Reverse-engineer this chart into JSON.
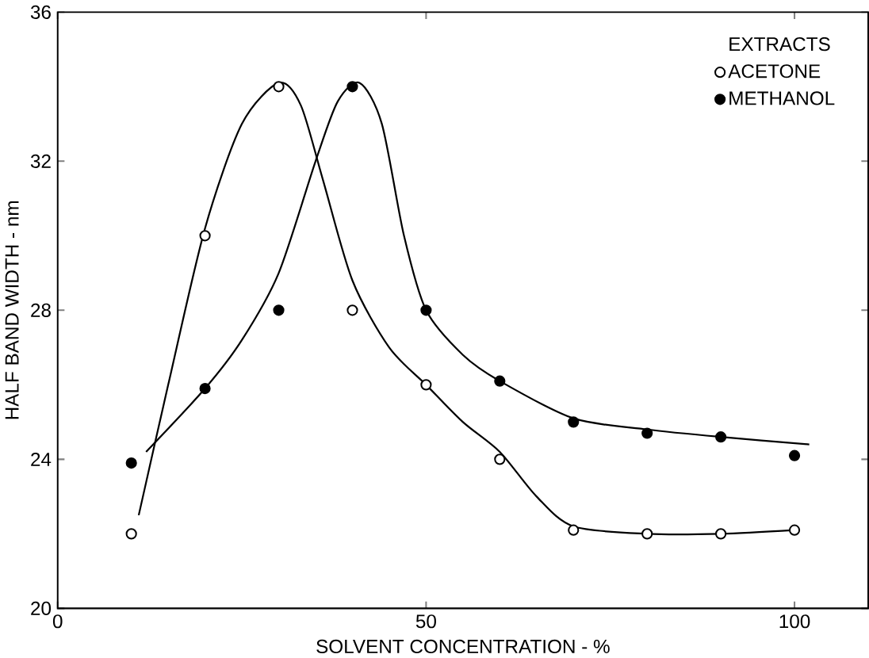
{
  "chart_data": {
    "type": "scatter",
    "xlabel": "SOLVENT CONCENTRATION - %",
    "ylabel": "HALF BAND WIDTH - nm",
    "legend_title": "EXTRACTS",
    "legend": "top right",
    "grid": false,
    "xlim": [
      0,
      110
    ],
    "ylim": [
      20,
      36
    ],
    "xticks": [
      0,
      50,
      100
    ],
    "yticks": [
      20,
      24,
      28,
      32,
      36
    ],
    "series": [
      {
        "name": "ACETONE",
        "color": "#ffffff",
        "marker": "circle",
        "x": [
          10,
          20,
          30,
          40,
          50,
          60,
          70,
          80,
          90,
          100
        ],
        "values": [
          22,
          30,
          34,
          28,
          26,
          24,
          22.1,
          22,
          22,
          22.1
        ]
      },
      {
        "name": "METHANOL",
        "color": "#000000",
        "marker": "circle",
        "x": [
          10,
          20,
          30,
          40,
          50,
          60,
          70,
          80,
          90,
          100
        ],
        "values": [
          23.9,
          25.9,
          28,
          34,
          28,
          26.1,
          25,
          24.7,
          24.6,
          24.1
        ]
      },
      {
        "type": "line",
        "marker": "none",
        "color": "#000000",
        "x": [
          11,
          15,
          20,
          25,
          30,
          33,
          36,
          40,
          45,
          50,
          55,
          60,
          65,
          70,
          80,
          90,
          100
        ],
        "values": [
          22.5,
          26,
          30.2,
          33,
          34.1,
          33.5,
          31.5,
          28.8,
          27,
          26,
          25,
          24.2,
          23,
          22.2,
          22,
          22,
          22.1
        ]
      },
      {
        "type": "line",
        "marker": "none",
        "color": "#000000",
        "x": [
          12,
          20,
          25,
          30,
          35,
          38,
          41,
          44,
          47,
          50,
          55,
          60,
          70,
          80,
          90,
          102
        ],
        "values": [
          24.2,
          25.9,
          27.2,
          29,
          32,
          33.6,
          34.1,
          33,
          30,
          28,
          26.8,
          26.1,
          25.1,
          24.8,
          24.6,
          24.4
        ]
      }
    ]
  }
}
